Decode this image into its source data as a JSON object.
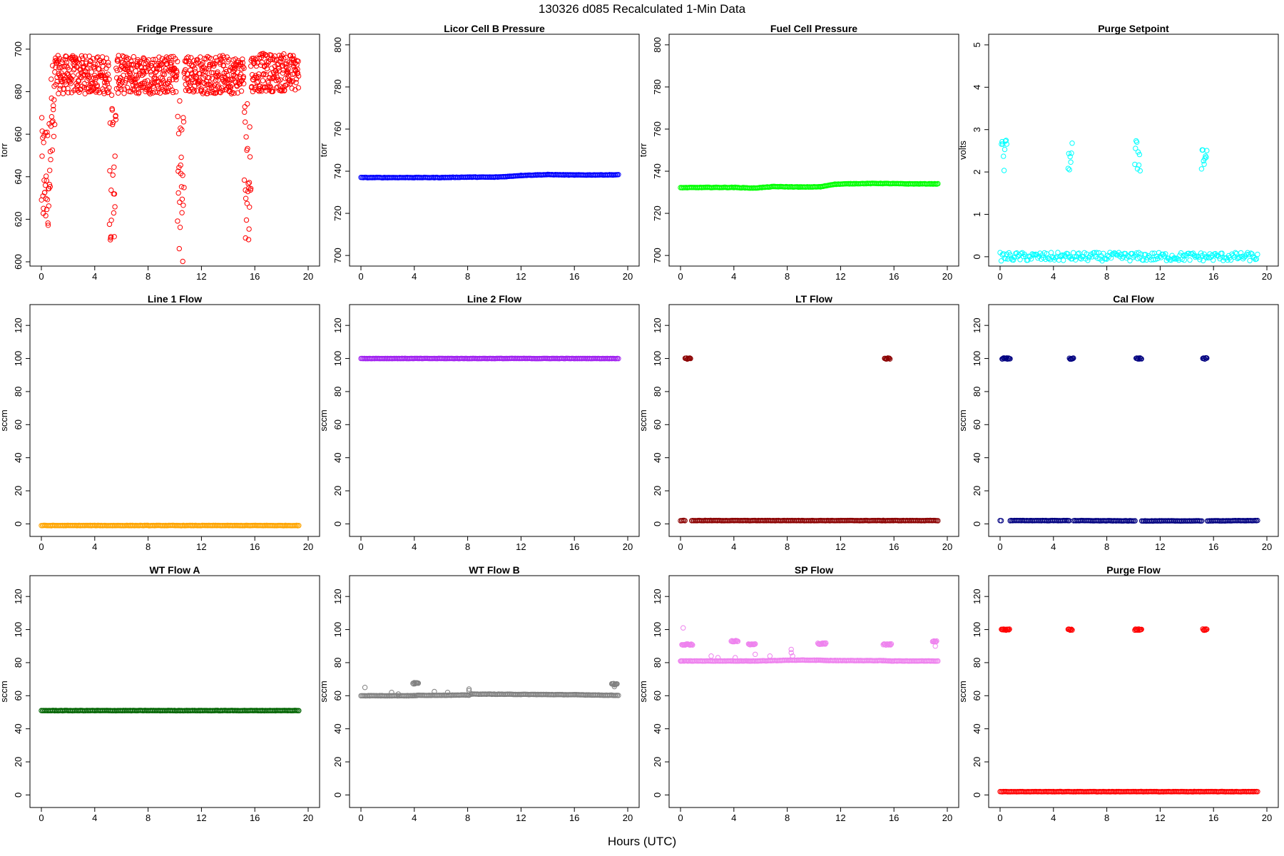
{
  "figure": {
    "title": "130326   d085   Recalculated 1-Min Data",
    "xlabel": "Hours (UTC)"
  },
  "chart_data": [
    {
      "type": "scatter",
      "title": "Fridge Pressure",
      "ylabel": "torr",
      "color": "#ff0000",
      "xlim": [
        0,
        20
      ],
      "ylim": [
        600,
        705
      ],
      "xticks": [
        0,
        4,
        8,
        12,
        16,
        20
      ],
      "yticks": [
        600,
        620,
        640,
        660,
        680,
        700
      ],
      "series": [
        {
          "segments": [
            {
              "x0": 0.0,
              "x1": 0.6,
              "kind": "band",
              "y": 640,
              "spread": 28
            },
            {
              "x0": 0.6,
              "x1": 1.0,
              "kind": "band",
              "y": 665,
              "spread": 30
            },
            {
              "x0": 1.0,
              "x1": 5.1,
              "kind": "band",
              "y": 688,
              "spread": 9
            },
            {
              "x0": 5.1,
              "x1": 5.6,
              "kind": "band",
              "y": 645,
              "spread": 35
            },
            {
              "x0": 5.6,
              "x1": 10.2,
              "kind": "band",
              "y": 688,
              "spread": 9
            },
            {
              "x0": 10.2,
              "x1": 10.7,
              "kind": "band",
              "y": 640,
              "spread": 40
            },
            {
              "x0": 10.7,
              "x1": 15.2,
              "kind": "band",
              "y": 688,
              "spread": 9
            },
            {
              "x0": 15.2,
              "x1": 15.7,
              "kind": "band",
              "y": 645,
              "spread": 35
            },
            {
              "x0": 15.7,
              "x1": 19.3,
              "kind": "band",
              "y": 689,
              "spread": 9
            }
          ]
        }
      ]
    },
    {
      "type": "scatter",
      "title": "Licor Cell B Pressure",
      "ylabel": "torr",
      "color": "#0000ff",
      "xlim": [
        0,
        20
      ],
      "ylim": [
        697,
        803
      ],
      "xticks": [
        0,
        4,
        8,
        12,
        16,
        20
      ],
      "yticks": [
        700,
        720,
        740,
        760,
        780,
        800
      ],
      "series": [
        {
          "points": [
            [
              0,
              737
            ],
            [
              2,
              737
            ],
            [
              4,
              737
            ],
            [
              6,
              737
            ],
            [
              8,
              737.2
            ],
            [
              10,
              737.2
            ],
            [
              11,
              737.5
            ],
            [
              12,
              738
            ],
            [
              14,
              738.4
            ],
            [
              16,
              738.2
            ],
            [
              19.3,
              738.3
            ]
          ]
        }
      ]
    },
    {
      "type": "scatter",
      "title": "Fuel Cell Pressure",
      "ylabel": "torr",
      "color": "#00ff00",
      "xlim": [
        0,
        20
      ],
      "ylim": [
        697,
        803
      ],
      "xticks": [
        0,
        4,
        8,
        12,
        16,
        20
      ],
      "yticks": [
        700,
        720,
        740,
        760,
        780,
        800
      ],
      "series": [
        {
          "points": [
            [
              0,
              732.2
            ],
            [
              2,
              732.3
            ],
            [
              4,
              732.3
            ],
            [
              5.5,
              732
            ],
            [
              7,
              732.7
            ],
            [
              9,
              732.5
            ],
            [
              10.5,
              732.6
            ],
            [
              11.5,
              733.8
            ],
            [
              13,
              734.1
            ],
            [
              15,
              734.2
            ],
            [
              17,
              734
            ],
            [
              19.3,
              734
            ]
          ]
        }
      ]
    },
    {
      "type": "scatter",
      "title": "Purge Setpoint",
      "ylabel": "volts",
      "color": "#00ffff",
      "xlim": [
        0,
        20
      ],
      "ylim": [
        -0.12,
        5.15
      ],
      "xticks": [
        0,
        4,
        8,
        12,
        16,
        20
      ],
      "yticks": [
        0,
        1,
        2,
        3,
        4,
        5
      ],
      "series": [
        {
          "points": [
            [
              0,
              0
            ],
            [
              19.3,
              0
            ]
          ],
          "clusters": [
            {
              "x0": 0.1,
              "x1": 0.5,
              "y": 2.37
            },
            {
              "x0": 5.1,
              "x1": 5.4,
              "y": 2.37
            },
            {
              "x0": 10.1,
              "x1": 10.5,
              "y": 2.37
            },
            {
              "x0": 15.1,
              "x1": 15.5,
              "y": 2.37
            }
          ]
        }
      ]
    },
    {
      "type": "scatter",
      "title": "Line 1 Flow",
      "ylabel": "sccm",
      "color": "#ffa500",
      "xlim": [
        0,
        20
      ],
      "ylim": [
        -5,
        130
      ],
      "xticks": [
        0,
        4,
        8,
        12,
        16,
        20
      ],
      "yticks": [
        0,
        20,
        40,
        60,
        80,
        100,
        120
      ],
      "series": [
        {
          "points": [
            [
              0,
              -1
            ],
            [
              19.3,
              -1
            ]
          ]
        }
      ]
    },
    {
      "type": "scatter",
      "title": "Line 2 Flow",
      "ylabel": "sccm",
      "color": "#a020f0",
      "xlim": [
        0,
        20
      ],
      "ylim": [
        -5,
        130
      ],
      "xticks": [
        0,
        4,
        8,
        12,
        16,
        20
      ],
      "yticks": [
        0,
        20,
        40,
        60,
        80,
        100,
        120
      ],
      "series": [
        {
          "points": [
            [
              0,
              100
            ],
            [
              19.3,
              100
            ]
          ]
        }
      ]
    },
    {
      "type": "scatter",
      "title": "LT Flow",
      "ylabel": "sccm",
      "color": "#8b0000",
      "xlim": [
        0,
        20
      ],
      "ylim": [
        -5,
        130
      ],
      "xticks": [
        0,
        4,
        8,
        12,
        16,
        20
      ],
      "yticks": [
        0,
        20,
        40,
        60,
        80,
        100,
        120
      ],
      "series": [
        {
          "points": [
            [
              0,
              2
            ],
            [
              15.2,
              2
            ],
            [
              15.7,
              2
            ],
            [
              19.3,
              2
            ]
          ],
          "gaps": [
            [
              0.4,
              0.8
            ]
          ],
          "clusters": [
            {
              "x0": 0.35,
              "x1": 0.75,
              "y": 100
            },
            {
              "x0": 15.3,
              "x1": 15.7,
              "y": 100
            }
          ]
        }
      ]
    },
    {
      "type": "scatter",
      "title": "Cal Flow",
      "ylabel": "sccm",
      "color": "#000080",
      "xlim": [
        0,
        20
      ],
      "ylim": [
        -5,
        130
      ],
      "xticks": [
        0,
        4,
        8,
        12,
        16,
        20
      ],
      "yticks": [
        0,
        20,
        40,
        60,
        80,
        100,
        120
      ],
      "series": [
        {
          "points": [
            [
              0,
              2
            ],
            [
              5.1,
              2
            ],
            [
              10.2,
              1.8
            ],
            [
              15.2,
              1.8
            ],
            [
              19.3,
              2
            ]
          ],
          "gaps": [
            [
              0.15,
              0.7
            ],
            [
              5.2,
              5.5
            ],
            [
              10.2,
              10.6
            ],
            [
              15.2,
              15.5
            ]
          ],
          "clusters": [
            {
              "x0": 0.15,
              "x1": 0.75,
              "y": 100
            },
            {
              "x0": 5.2,
              "x1": 5.5,
              "y": 100
            },
            {
              "x0": 10.2,
              "x1": 10.6,
              "y": 100
            },
            {
              "x0": 15.2,
              "x1": 15.5,
              "y": 100
            }
          ]
        }
      ]
    },
    {
      "type": "scatter",
      "title": "WT Flow A",
      "ylabel": "sccm",
      "color": "#006400",
      "xlim": [
        0,
        20
      ],
      "ylim": [
        -5,
        130
      ],
      "xticks": [
        0,
        4,
        8,
        12,
        16,
        20
      ],
      "yticks": [
        0,
        20,
        40,
        60,
        80,
        100,
        120
      ],
      "series": [
        {
          "points": [
            [
              0,
              51
            ],
            [
              19.3,
              51
            ]
          ]
        }
      ]
    },
    {
      "type": "scatter",
      "title": "WT Flow B",
      "ylabel": "sccm",
      "color": "#808080",
      "xlim": [
        0,
        20
      ],
      "ylim": [
        -5,
        130
      ],
      "xticks": [
        0,
        4,
        8,
        12,
        16,
        20
      ],
      "yticks": [
        0,
        20,
        40,
        60,
        80,
        100,
        120
      ],
      "series": [
        {
          "points": [
            [
              0,
              60
            ],
            [
              3.9,
              60
            ],
            [
              4.2,
              60.2
            ],
            [
              8.1,
              60.4
            ],
            [
              8.3,
              61
            ],
            [
              12,
              60.8
            ],
            [
              16,
              60.6
            ],
            [
              19.3,
              60.2
            ]
          ],
          "clusters": [
            {
              "x0": 3.9,
              "x1": 4.3,
              "y": 67.5
            },
            {
              "x0": 18.8,
              "x1": 19.2,
              "y": 67
            }
          ],
          "outliers": [
            [
              0.3,
              65
            ],
            [
              2.3,
              62
            ],
            [
              2.8,
              61
            ],
            [
              5.5,
              62.5
            ],
            [
              6.5,
              62
            ],
            [
              8.1,
              64
            ],
            [
              8.1,
              63
            ],
            [
              19.0,
              65.5
            ]
          ]
        }
      ]
    },
    {
      "type": "scatter",
      "title": "SP Flow",
      "ylabel": "sccm",
      "color": "#ee82ee",
      "xlim": [
        0,
        20
      ],
      "ylim": [
        -5,
        130
      ],
      "xticks": [
        0,
        4,
        8,
        12,
        16,
        20
      ],
      "yticks": [
        0,
        20,
        40,
        60,
        80,
        100,
        120
      ],
      "series": [
        {
          "points": [
            [
              0,
              81
            ],
            [
              0.1,
              81
            ],
            [
              0.8,
              81
            ],
            [
              3.8,
              81
            ],
            [
              4.4,
              81
            ],
            [
              5.2,
              81
            ],
            [
              5.8,
              81
            ],
            [
              8.2,
              81.5
            ],
            [
              10.2,
              81.5
            ],
            [
              11.0,
              81.3
            ],
            [
              15.2,
              81.2
            ],
            [
              15.9,
              81
            ],
            [
              19.3,
              81
            ]
          ],
          "clusters": [
            {
              "x0": 0.1,
              "x1": 0.9,
              "y": 91
            },
            {
              "x0": 3.8,
              "x1": 4.3,
              "y": 93
            },
            {
              "x0": 5.1,
              "x1": 5.6,
              "y": 91
            },
            {
              "x0": 10.3,
              "x1": 10.9,
              "y": 91.5
            },
            {
              "x0": 15.2,
              "x1": 15.8,
              "y": 91
            },
            {
              "x0": 18.9,
              "x1": 19.2,
              "y": 93
            }
          ],
          "outliers": [
            [
              0.2,
              101
            ],
            [
              2.3,
              84
            ],
            [
              2.8,
              83
            ],
            [
              4.1,
              83
            ],
            [
              5.6,
              85
            ],
            [
              6.7,
              84
            ],
            [
              8.3,
              88
            ],
            [
              8.3,
              86
            ],
            [
              8.4,
              84
            ],
            [
              19.1,
              90
            ]
          ]
        }
      ]
    },
    {
      "type": "scatter",
      "title": "Purge Flow",
      "ylabel": "sccm",
      "color": "#ff0000",
      "xlim": [
        0,
        20
      ],
      "ylim": [
        -5,
        130
      ],
      "xticks": [
        0,
        4,
        8,
        12,
        16,
        20
      ],
      "yticks": [
        0,
        20,
        40,
        60,
        80,
        100,
        120
      ],
      "series": [
        {
          "points": [
            [
              0,
              2
            ],
            [
              19.3,
              2
            ]
          ],
          "clusters": [
            {
              "x0": 0.1,
              "x1": 0.7,
              "y": 100
            },
            {
              "x0": 5.1,
              "x1": 5.4,
              "y": 100
            },
            {
              "x0": 10.1,
              "x1": 10.6,
              "y": 100
            },
            {
              "x0": 15.2,
              "x1": 15.5,
              "y": 100
            }
          ]
        }
      ]
    }
  ]
}
